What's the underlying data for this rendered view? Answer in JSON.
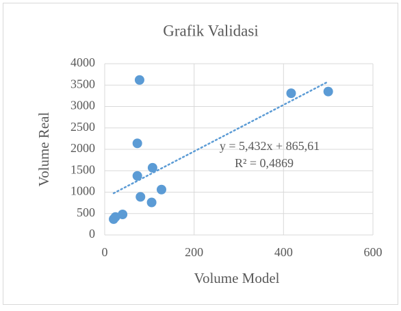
{
  "chart_data": {
    "type": "scatter",
    "title": "Grafik Validasi",
    "x_label": "Volume Model",
    "y_label": "Volume Real",
    "x": [
      78,
      73,
      73,
      80,
      107,
      105,
      127,
      40,
      24,
      20,
      417,
      500
    ],
    "series": [
      {
        "name": "Volume Real",
        "color": "#5b9bd5",
        "values": [
          3620,
          2140,
          1380,
          890,
          1570,
          760,
          1060,
          480,
          420,
          370,
          3310,
          3350
        ]
      }
    ],
    "xlim": [
      0,
      600
    ],
    "xticks": [
      0,
      200,
      400,
      600
    ],
    "ylim": [
      0,
      4000
    ],
    "yticks": [
      0,
      500,
      1000,
      1500,
      2000,
      2500,
      3000,
      3500,
      4000
    ],
    "grid": true,
    "trendline": {
      "slope": 5.432,
      "intercept": 865.61,
      "label": "y = 5,432x + 865,61",
      "r2_label": "R² = 0,4869"
    }
  }
}
